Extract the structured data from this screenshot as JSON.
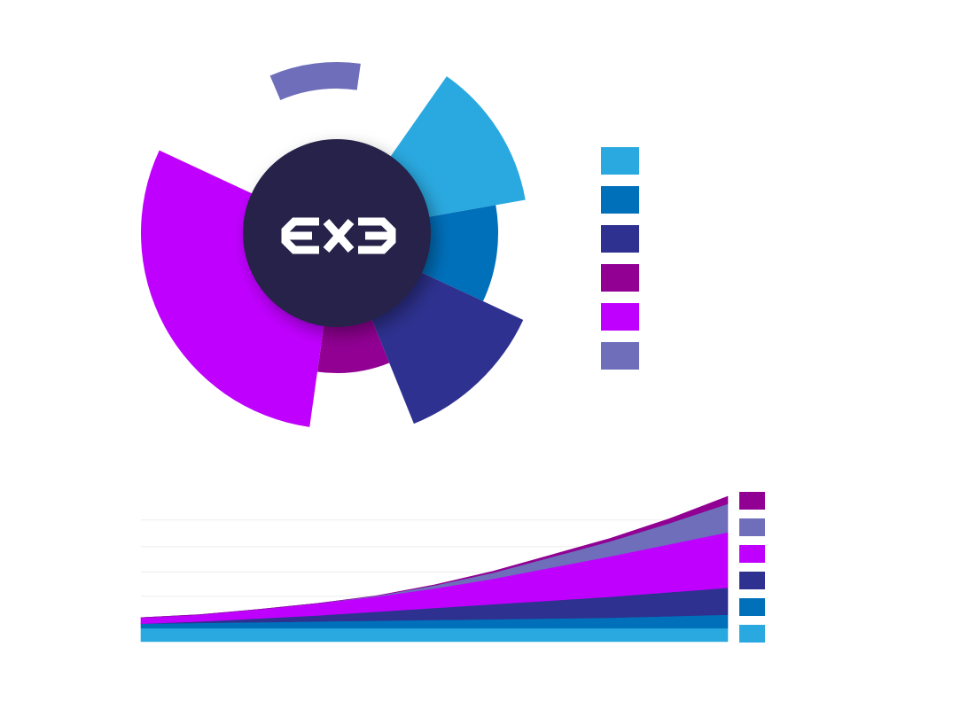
{
  "colors": {
    "background": "#ffffff",
    "hub": "#27224a",
    "logo": "#ffffff",
    "palette": {
      "sky": "#2aa9e0",
      "blue": "#0070bb",
      "navy": "#2e318f",
      "plum": "#910093",
      "magenta": "#c000ff",
      "lavender": "#6e6eba"
    }
  },
  "logo": {
    "icon": "exe-logo-icon"
  },
  "chart_data": [
    {
      "type": "polar-area",
      "grid": false,
      "legend_placement": "right",
      "slices": [
        {
          "color": "#2aa9e0",
          "radius": 216,
          "start_deg": 35,
          "end_deg": 80
        },
        {
          "color": "#0070bb",
          "radius": 182,
          "start_deg": 80,
          "end_deg": 115
        },
        {
          "color": "#2e318f",
          "radius": 232,
          "start_deg": 115,
          "end_deg": 158
        },
        {
          "color": "#910093",
          "radius": 158,
          "start_deg": 158,
          "end_deg": 188
        },
        {
          "color": "#c000ff",
          "radius": 221,
          "start_deg": 188,
          "end_deg": 295
        },
        {
          "color": "#6e6eba",
          "radius": 193,
          "start_deg": 337,
          "end_deg": 368,
          "ring_inner": 163
        }
      ],
      "legend": [
        {
          "color": "#2aa9e0"
        },
        {
          "color": "#0070bb"
        },
        {
          "color": "#2e318f"
        },
        {
          "color": "#910093"
        },
        {
          "color": "#c000ff"
        },
        {
          "color": "#6e6eba"
        }
      ]
    },
    {
      "type": "area",
      "stacked": true,
      "grid": true,
      "legend_placement": "right",
      "x": [
        0,
        1,
        2,
        3,
        4,
        5,
        6,
        7,
        8,
        9,
        10
      ],
      "ylim": [
        0,
        100
      ],
      "series": [
        {
          "color": "#2aa9e0",
          "values": [
            9,
            9,
            9,
            9,
            9,
            9,
            9,
            9,
            9,
            9,
            9
          ]
        },
        {
          "color": "#0070bb",
          "values": [
            3,
            3.5,
            4,
            4.5,
            5,
            5.5,
            6,
            6.5,
            7,
            8,
            9
          ]
        },
        {
          "color": "#2e318f",
          "values": [
            0,
            1,
            2.5,
            4,
            6,
            8,
            10,
            12,
            14,
            16,
            18
          ]
        },
        {
          "color": "#c000ff",
          "values": [
            4,
            4.5,
            6,
            8,
            10,
            13,
            17,
            22,
            27,
            32,
            37
          ]
        },
        {
          "color": "#6e6eba",
          "values": [
            0,
            0,
            0,
            0,
            0.5,
            2,
            4,
            7,
            10,
            14,
            19
          ]
        },
        {
          "color": "#910093",
          "values": [
            0,
            0,
            0,
            0,
            0,
            0.4,
            1,
            1.5,
            2,
            3,
            5
          ]
        }
      ],
      "legend": [
        {
          "color": "#910093"
        },
        {
          "color": "#6e6eba"
        },
        {
          "color": "#c000ff"
        },
        {
          "color": "#2e318f"
        },
        {
          "color": "#0070bb"
        },
        {
          "color": "#2aa9e0"
        }
      ]
    }
  ]
}
